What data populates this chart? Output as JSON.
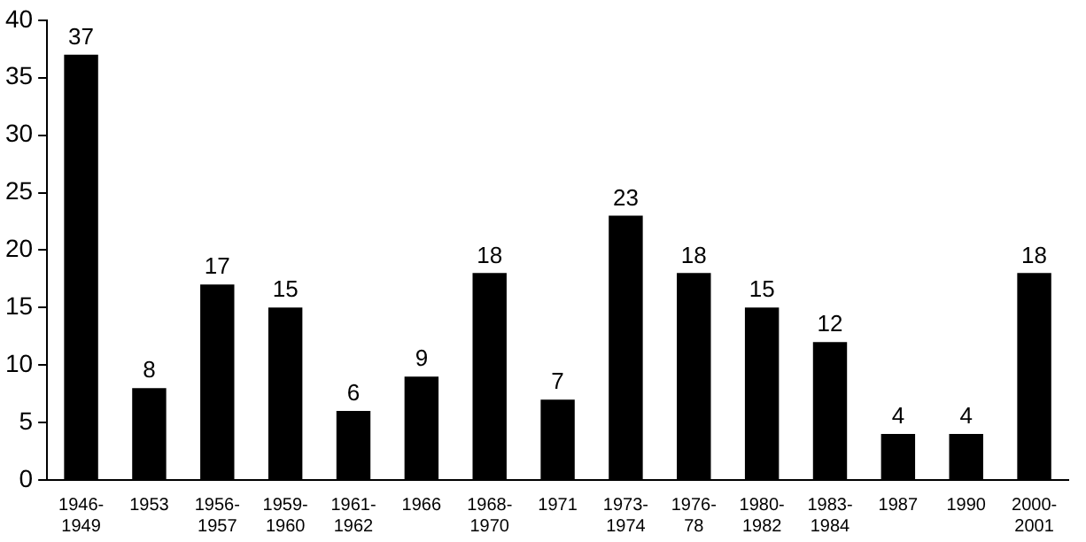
{
  "chart_data": {
    "type": "bar",
    "categories": [
      "1946-1949",
      "1953",
      "1956-1957",
      "1959-1960",
      "1961-1962",
      "1966",
      "1968-1970",
      "1971",
      "1973-1974",
      "1976-78",
      "1980-1982",
      "1983-1984",
      "1987",
      "1990",
      "2000-2001"
    ],
    "values": [
      37,
      8,
      17,
      15,
      6,
      9,
      18,
      7,
      23,
      18,
      15,
      12,
      4,
      4,
      18
    ],
    "color": "#000000",
    "ylim": [
      0,
      40
    ],
    "yticks": [
      0,
      5,
      10,
      15,
      20,
      25,
      30,
      35,
      40
    ],
    "grid": false,
    "legend": false,
    "data_labels": true
  }
}
